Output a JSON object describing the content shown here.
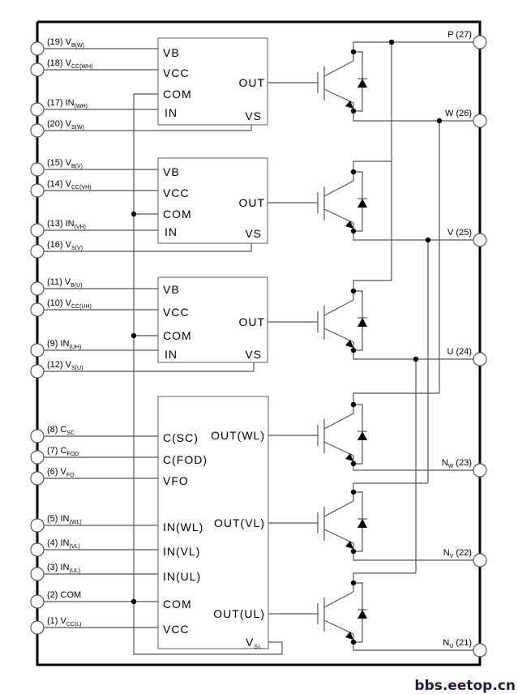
{
  "left_pins": [
    {
      "label": "(19) V",
      "sub": "B(W)"
    },
    {
      "label": "(18) V",
      "sub": "CC(WH)"
    },
    {
      "label": "(17) IN",
      "sub": "(WH)"
    },
    {
      "label": "(20) V",
      "sub": "S(W)"
    },
    {
      "label": "(15) V",
      "sub": "B(V)"
    },
    {
      "label": "(14) V",
      "sub": "CC(VH)"
    },
    {
      "label": "(13) IN",
      "sub": "(VH)"
    },
    {
      "label": "(16) V",
      "sub": "S(V)"
    },
    {
      "label": "(11) V",
      "sub": "B(U)"
    },
    {
      "label": "(10) V",
      "sub": "CC(UH)"
    },
    {
      "label": "(9) IN",
      "sub": "(UH)"
    },
    {
      "label": "(12) V",
      "sub": "S(U)"
    },
    {
      "label": "(8) C",
      "sub": "SC"
    },
    {
      "label": "(7) C",
      "sub": "FOD"
    },
    {
      "label": "(6) V",
      "sub": "FO"
    },
    {
      "label": "(5) IN",
      "sub": "(WL)"
    },
    {
      "label": "(4) IN",
      "sub": "(VL)"
    },
    {
      "label": "(3) IN",
      "sub": "(UL)"
    },
    {
      "label": "(2) COM",
      "sub": ""
    },
    {
      "label": "(1) V",
      "sub": "CC(L)"
    }
  ],
  "high_side_blocks": [
    {
      "vb": "VB",
      "vcc": "VCC",
      "com": "COM",
      "in": "IN",
      "vs": "VS",
      "out": "OUT"
    },
    {
      "vb": "VB",
      "vcc": "VCC",
      "com": "COM",
      "in": "IN",
      "vs": "VS",
      "out": "OUT"
    },
    {
      "vb": "VB",
      "vcc": "VCC",
      "com": "COM",
      "in": "IN",
      "vs": "VS",
      "out": "OUT"
    }
  ],
  "low_side_block": {
    "inputs": [
      "C(SC)",
      "C(FOD)",
      "VFO",
      "IN(WL)",
      "IN(VL)",
      "IN(UL)",
      "COM",
      "VCC"
    ],
    "outputs": [
      "OUT(WL)",
      "OUT(VL)",
      "OUT(UL)"
    ],
    "vsl": "V",
    "vsl_sub": "SL"
  },
  "right_pins": [
    {
      "label": "P (27)",
      "sub": "",
      "suffix": ""
    },
    {
      "label": "W (26)",
      "sub": "",
      "suffix": ""
    },
    {
      "label": "V (25)",
      "sub": "",
      "suffix": ""
    },
    {
      "label": "U (24)",
      "sub": "",
      "suffix": ""
    },
    {
      "label": "N",
      "sub": "W",
      "suffix": " (23)"
    },
    {
      "label": "N",
      "sub": "V",
      "suffix": " (22)"
    },
    {
      "label": "N",
      "sub": "U",
      "suffix": " (21)"
    }
  ],
  "watermark": "bbs.eetop.cn",
  "colors": {
    "wire": "#555555",
    "frame": "#000000",
    "watermark": "#2a1a3a"
  }
}
